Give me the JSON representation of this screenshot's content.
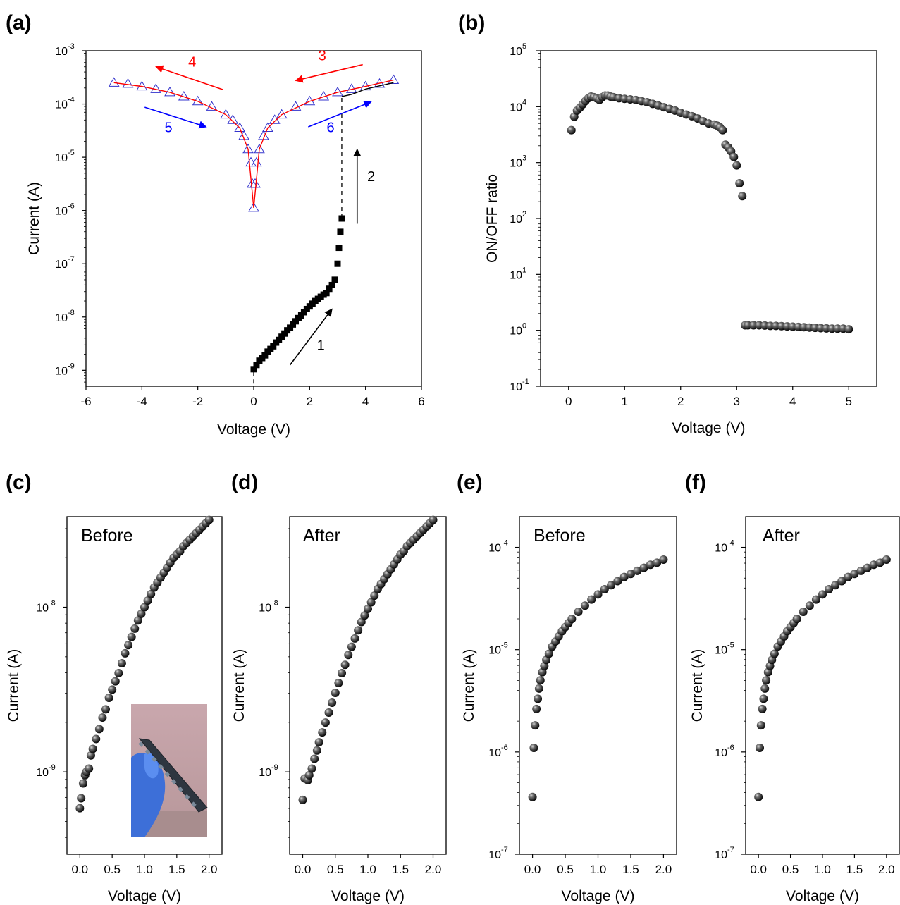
{
  "chart_data": [
    {
      "id": "a",
      "panel_label": "(a)",
      "type": "scatter",
      "xlabel": "Voltage (V)",
      "ylabel": "Current (A)",
      "xlim": [
        -6,
        6
      ],
      "ylim_log10": [
        -9.3,
        -3
      ],
      "y_scale": "log",
      "xticks": [
        "-6",
        "-4",
        "-2",
        "0",
        "2",
        "4",
        "6"
      ],
      "yticks": [
        {
          "base": "10",
          "exp": "-9",
          "v": -9
        },
        {
          "base": "10",
          "exp": "-8",
          "v": -8
        },
        {
          "base": "10",
          "exp": "-7",
          "v": -7
        },
        {
          "base": "10",
          "exp": "-6",
          "v": -6
        },
        {
          "base": "10",
          "exp": "-5",
          "v": -5
        },
        {
          "base": "10",
          "exp": "-4",
          "v": -4
        },
        {
          "base": "10",
          "exp": "-3",
          "v": -3
        }
      ],
      "series": [
        {
          "marker": "square",
          "color": "#000000",
          "x": [
            0,
            0.1,
            0.2,
            0.3,
            0.4,
            0.5,
            0.6,
            0.7,
            0.8,
            0.9,
            1.0,
            1.1,
            1.2,
            1.3,
            1.4,
            1.5,
            1.6,
            1.7,
            1.8,
            1.9,
            2.0,
            2.1,
            2.2,
            2.3,
            2.4,
            2.5,
            2.6,
            2.7,
            2.8,
            2.9,
            3.0,
            3.05,
            3.1,
            3.15
          ],
          "y_log10": [
            -8.98,
            -8.9,
            -8.82,
            -8.77,
            -8.72,
            -8.65,
            -8.6,
            -8.55,
            -8.48,
            -8.43,
            -8.37,
            -8.31,
            -8.25,
            -8.2,
            -8.14,
            -8.08,
            -8.02,
            -7.97,
            -7.91,
            -7.85,
            -7.8,
            -7.75,
            -7.7,
            -7.66,
            -7.62,
            -7.58,
            -7.55,
            -7.47,
            -7.4,
            -7.3,
            -7.0,
            -6.7,
            -6.4,
            -6.15
          ]
        },
        {
          "marker": "triangle",
          "color": "#3333cc",
          "x": [
            -5,
            -4.5,
            -4,
            -3.5,
            -3,
            -2.5,
            -2,
            -1.5,
            -1,
            -0.75,
            -0.5,
            -0.35,
            -0.2,
            -0.1,
            -0.05,
            0,
            0.05,
            0.1,
            0.2,
            0.35,
            0.5,
            0.75,
            1,
            1.5,
            2,
            2.5,
            3,
            3.5,
            4,
            4.5,
            5
          ],
          "y_log10": [
            -3.6,
            -3.62,
            -3.67,
            -3.72,
            -3.78,
            -3.86,
            -3.95,
            -4.05,
            -4.2,
            -4.3,
            -4.45,
            -4.6,
            -4.85,
            -5.1,
            -5.5,
            -5.95,
            -5.5,
            -5.1,
            -4.85,
            -4.6,
            -4.45,
            -4.3,
            -4.2,
            -4.05,
            -3.95,
            -3.86,
            -3.78,
            -3.72,
            -3.67,
            -3.62,
            -3.55
          ]
        },
        {
          "marker": "line",
          "color": "#ff0000",
          "x": [
            -5,
            -4,
            -3,
            -2,
            -1,
            -0.5,
            -0.2,
            0,
            0.2,
            0.5,
            1,
            2,
            3,
            4,
            5
          ],
          "y_log10": [
            -3.6,
            -3.67,
            -3.78,
            -3.95,
            -4.2,
            -4.45,
            -4.85,
            -5.95,
            -4.85,
            -4.45,
            -4.2,
            -3.95,
            -3.78,
            -3.67,
            -3.55
          ]
        },
        {
          "marker": "line",
          "color": "#000000",
          "x": [
            3.15,
            3.5,
            4,
            4.5,
            5
          ],
          "y_log10": [
            -3.86,
            -3.82,
            -3.72,
            -3.66,
            -3.6
          ]
        }
      ],
      "dashed_segments": [
        {
          "x": [
            0,
            0
          ],
          "y_log10": [
            -9.25,
            -8.98
          ]
        },
        {
          "x": [
            3.15,
            3.15
          ],
          "y_log10": [
            -6.15,
            -3.86
          ]
        }
      ],
      "annotations": [
        {
          "text": "1",
          "color": "#000000",
          "tx": 2.4,
          "ty": -8.62,
          "from": [
            1.3,
            -8.9
          ],
          "to": [
            2.8,
            -7.85
          ]
        },
        {
          "text": "2",
          "color": "#000000",
          "tx": 4.2,
          "ty": -5.45,
          "from": [
            3.7,
            -6.25
          ],
          "to": [
            3.7,
            -4.85
          ]
        },
        {
          "text": "3",
          "color": "#ff0000",
          "tx": 2.45,
          "ty": -3.18,
          "from": [
            3.9,
            -3.26
          ],
          "to": [
            1.5,
            -3.56
          ]
        },
        {
          "text": "4",
          "color": "#ff0000",
          "tx": -2.2,
          "ty": -3.3,
          "from": [
            -1.1,
            -3.73
          ],
          "to": [
            -3.5,
            -3.3
          ]
        },
        {
          "text": "5",
          "color": "#0000ff",
          "tx": -3.05,
          "ty": -4.53,
          "from": [
            -3.9,
            -4.06
          ],
          "to": [
            -1.7,
            -4.43
          ]
        },
        {
          "text": "6",
          "color": "#0000ff",
          "tx": 2.75,
          "ty": -4.53,
          "from": [
            1.95,
            -4.43
          ],
          "to": [
            4.2,
            -3.96
          ]
        }
      ]
    },
    {
      "id": "b",
      "panel_label": "(b)",
      "type": "scatter",
      "xlabel": "Voltage (V)",
      "ylabel": "ON/OFF ratio",
      "xlim": [
        -0.5,
        5.5
      ],
      "ylim_log10": [
        -1,
        5
      ],
      "y_scale": "log",
      "xticks": [
        "0",
        "1",
        "2",
        "3",
        "4",
        "5"
      ],
      "yticks": [
        {
          "base": "10",
          "exp": "-1",
          "v": -1
        },
        {
          "base": "10",
          "exp": "0",
          "v": 0
        },
        {
          "base": "10",
          "exp": "1",
          "v": 1
        },
        {
          "base": "10",
          "exp": "2",
          "v": 2
        },
        {
          "base": "10",
          "exp": "3",
          "v": 3
        },
        {
          "base": "10",
          "exp": "4",
          "v": 4
        },
        {
          "base": "10",
          "exp": "5",
          "v": 5
        }
      ],
      "series": [
        {
          "marker": "sphere",
          "x": [
            0.05,
            0.1,
            0.15,
            0.2,
            0.25,
            0.3,
            0.35,
            0.4,
            0.45,
            0.5,
            0.55,
            0.6,
            0.65,
            0.7,
            0.75,
            0.8,
            0.9,
            1.0,
            1.1,
            1.2,
            1.3,
            1.4,
            1.5,
            1.6,
            1.7,
            1.8,
            1.9,
            2.0,
            2.1,
            2.2,
            2.3,
            2.4,
            2.5,
            2.6,
            2.65,
            2.7,
            2.75,
            2.8,
            2.85,
            2.9,
            2.95,
            3.0,
            3.05,
            3.1,
            3.15,
            3.2,
            3.3,
            3.4,
            3.5,
            3.6,
            3.7,
            3.8,
            3.9,
            4.0,
            4.1,
            4.2,
            4.3,
            4.4,
            4.5,
            4.6,
            4.7,
            4.8,
            4.9,
            5.0
          ],
          "y_log10": [
            3.58,
            3.82,
            3.93,
            3.98,
            4.04,
            4.1,
            4.15,
            4.18,
            4.17,
            4.15,
            4.12,
            4.17,
            4.2,
            4.2,
            4.18,
            4.17,
            4.15,
            4.14,
            4.13,
            4.12,
            4.1,
            4.08,
            4.05,
            4.02,
            3.99,
            3.96,
            3.93,
            3.89,
            3.86,
            3.83,
            3.79,
            3.74,
            3.7,
            3.68,
            3.66,
            3.63,
            3.58,
            3.32,
            3.27,
            3.2,
            3.1,
            2.95,
            2.63,
            2.4,
            0.09,
            0.09,
            0.09,
            0.09,
            0.085,
            0.08,
            0.08,
            0.075,
            0.07,
            0.065,
            0.06,
            0.055,
            0.05,
            0.045,
            0.04,
            0.035,
            0.03,
            0.03,
            0.03,
            0.02
          ]
        }
      ]
    },
    {
      "id": "c",
      "panel_label": "(c)",
      "type": "scatter",
      "xlabel": "Voltage (V)",
      "ylabel": "Current (A)",
      "text_label": "Before",
      "xlim": [
        -0.2,
        2.2
      ],
      "ylim_log10": [
        -9.5,
        -7.45
      ],
      "y_scale": "log",
      "xticks": [
        "0.0",
        "0.5",
        "1.0",
        "1.5",
        "2.0"
      ],
      "yticks": [
        {
          "base": "10",
          "exp": "-9",
          "v": -9
        },
        {
          "base": "10",
          "exp": "-8",
          "v": -8
        }
      ],
      "inset_photo": true,
      "series": [
        {
          "marker": "sphere",
          "x": [
            0.0,
            0.02,
            0.05,
            0.08,
            0.1,
            0.14,
            0.17,
            0.2,
            0.25,
            0.3,
            0.35,
            0.4,
            0.45,
            0.5,
            0.55,
            0.6,
            0.65,
            0.7,
            0.75,
            0.8,
            0.85,
            0.9,
            0.95,
            1.0,
            1.05,
            1.1,
            1.15,
            1.2,
            1.25,
            1.3,
            1.35,
            1.4,
            1.45,
            1.5,
            1.55,
            1.6,
            1.65,
            1.7,
            1.75,
            1.8,
            1.85,
            1.9,
            1.95,
            2.0
          ],
          "y_log10": [
            -9.22,
            -9.16,
            -9.07,
            -9.02,
            -9.0,
            -8.98,
            -8.9,
            -8.86,
            -8.8,
            -8.74,
            -8.67,
            -8.62,
            -8.55,
            -8.5,
            -8.45,
            -8.4,
            -8.34,
            -8.28,
            -8.23,
            -8.18,
            -8.13,
            -8.08,
            -8.04,
            -8.0,
            -7.96,
            -7.92,
            -7.88,
            -7.85,
            -7.82,
            -7.79,
            -7.76,
            -7.73,
            -7.7,
            -7.68,
            -7.66,
            -7.63,
            -7.61,
            -7.59,
            -7.57,
            -7.55,
            -7.53,
            -7.51,
            -7.49,
            -7.47
          ]
        }
      ]
    },
    {
      "id": "d",
      "panel_label": "(d)",
      "type": "scatter",
      "xlabel": "Voltage (V)",
      "ylabel": "Current (A)",
      "text_label": "After",
      "xlim": [
        -0.2,
        2.2
      ],
      "ylim_log10": [
        -9.5,
        -7.45
      ],
      "y_scale": "log",
      "xticks": [
        "0.0",
        "0.5",
        "1.0",
        "1.5",
        "2.0"
      ],
      "yticks": [
        {
          "base": "10",
          "exp": "-9",
          "v": -9
        },
        {
          "base": "10",
          "exp": "-8",
          "v": -8
        }
      ],
      "series": [
        {
          "marker": "sphere",
          "x": [
            0.0,
            0.03,
            0.08,
            0.1,
            0.14,
            0.18,
            0.22,
            0.25,
            0.3,
            0.35,
            0.4,
            0.45,
            0.5,
            0.55,
            0.6,
            0.65,
            0.7,
            0.75,
            0.8,
            0.85,
            0.9,
            0.95,
            1.0,
            1.05,
            1.1,
            1.15,
            1.2,
            1.25,
            1.3,
            1.35,
            1.4,
            1.45,
            1.5,
            1.55,
            1.6,
            1.65,
            1.7,
            1.75,
            1.8,
            1.85,
            1.9,
            1.95,
            2.0
          ],
          "y_log10": [
            -9.17,
            -9.04,
            -9.05,
            -9.02,
            -8.98,
            -8.92,
            -8.87,
            -8.82,
            -8.76,
            -8.7,
            -8.64,
            -8.58,
            -8.52,
            -8.46,
            -8.4,
            -8.35,
            -8.29,
            -8.24,
            -8.19,
            -8.14,
            -8.09,
            -8.05,
            -8.01,
            -7.97,
            -7.93,
            -7.89,
            -7.86,
            -7.83,
            -7.8,
            -7.77,
            -7.74,
            -7.71,
            -7.68,
            -7.66,
            -7.63,
            -7.61,
            -7.59,
            -7.57,
            -7.55,
            -7.53,
            -7.51,
            -7.49,
            -7.47
          ]
        }
      ]
    },
    {
      "id": "e",
      "panel_label": "(e)",
      "type": "scatter",
      "xlabel": "Voltage (V)",
      "ylabel": "Current (A)",
      "text_label": "Before",
      "xlim": [
        -0.2,
        2.2
      ],
      "ylim_log10": [
        -7,
        -3.7
      ],
      "y_scale": "log",
      "xticks": [
        "0.0",
        "0.5",
        "1.0",
        "1.5",
        "2.0"
      ],
      "yticks": [
        {
          "base": "10",
          "exp": "-7",
          "v": -7
        },
        {
          "base": "10",
          "exp": "-6",
          "v": -6
        },
        {
          "base": "10",
          "exp": "-5",
          "v": -5
        },
        {
          "base": "10",
          "exp": "-4",
          "v": -4
        }
      ],
      "series": [
        {
          "marker": "sphere",
          "x": [
            0.0,
            0.02,
            0.04,
            0.06,
            0.08,
            0.1,
            0.12,
            0.15,
            0.18,
            0.21,
            0.25,
            0.3,
            0.35,
            0.4,
            0.45,
            0.5,
            0.55,
            0.6,
            0.7,
            0.8,
            0.9,
            1.0,
            1.1,
            1.2,
            1.3,
            1.4,
            1.5,
            1.6,
            1.7,
            1.8,
            1.9,
            2.0
          ],
          "y_log10": [
            -6.44,
            -5.96,
            -5.74,
            -5.58,
            -5.48,
            -5.38,
            -5.3,
            -5.22,
            -5.16,
            -5.1,
            -5.04,
            -4.97,
            -4.92,
            -4.87,
            -4.82,
            -4.78,
            -4.74,
            -4.7,
            -4.63,
            -4.57,
            -4.51,
            -4.46,
            -4.41,
            -4.37,
            -4.33,
            -4.29,
            -4.26,
            -4.23,
            -4.2,
            -4.17,
            -4.15,
            -4.12
          ]
        }
      ]
    },
    {
      "id": "f",
      "panel_label": "(f)",
      "type": "scatter",
      "xlabel": "Voltage (V)",
      "ylabel": "Current (A)",
      "text_label": "After",
      "xlim": [
        -0.2,
        2.2
      ],
      "ylim_log10": [
        -7,
        -3.7
      ],
      "y_scale": "log",
      "xticks": [
        "0.0",
        "0.5",
        "1.0",
        "1.5",
        "2.0"
      ],
      "yticks": [
        {
          "base": "10",
          "exp": "-7",
          "v": -7
        },
        {
          "base": "10",
          "exp": "-6",
          "v": -6
        },
        {
          "base": "10",
          "exp": "-5",
          "v": -5
        },
        {
          "base": "10",
          "exp": "-4",
          "v": -4
        }
      ],
      "series": [
        {
          "marker": "sphere",
          "x": [
            0.0,
            0.02,
            0.04,
            0.06,
            0.08,
            0.1,
            0.12,
            0.15,
            0.18,
            0.21,
            0.25,
            0.3,
            0.35,
            0.4,
            0.45,
            0.5,
            0.55,
            0.6,
            0.7,
            0.8,
            0.9,
            1.0,
            1.1,
            1.2,
            1.3,
            1.4,
            1.5,
            1.6,
            1.7,
            1.8,
            1.9,
            2.0
          ],
          "y_log10": [
            -6.44,
            -5.96,
            -5.74,
            -5.58,
            -5.48,
            -5.38,
            -5.3,
            -5.22,
            -5.16,
            -5.1,
            -5.04,
            -4.97,
            -4.92,
            -4.87,
            -4.82,
            -4.78,
            -4.74,
            -4.7,
            -4.63,
            -4.57,
            -4.51,
            -4.46,
            -4.41,
            -4.37,
            -4.33,
            -4.29,
            -4.26,
            -4.23,
            -4.2,
            -4.17,
            -4.15,
            -4.12
          ]
        }
      ]
    }
  ]
}
